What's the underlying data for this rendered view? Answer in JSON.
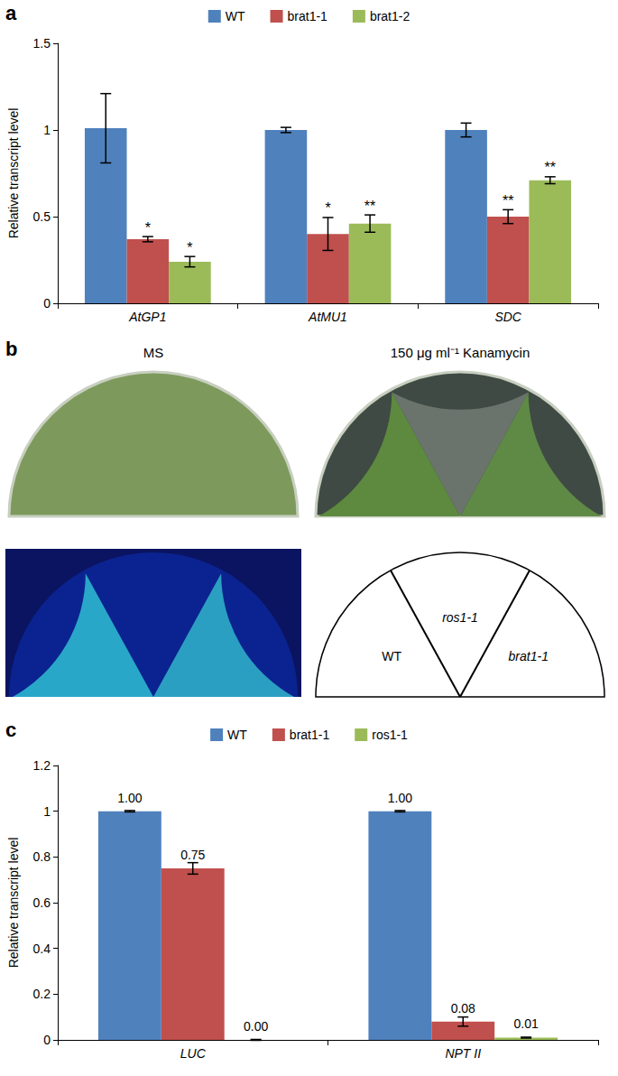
{
  "panel_labels": [
    "a",
    "b",
    "c"
  ],
  "chart_data": [
    {
      "type": "bar",
      "categories": [
        "AtGP1",
        "AtMU1",
        "SDC"
      ],
      "y_label": "Relative transcript level",
      "ylim": [
        0,
        1.5
      ],
      "yticks": [
        0,
        0.5,
        1,
        1.5
      ],
      "grid": false,
      "legend": "top",
      "series": [
        {
          "name": "WT",
          "color": "#4f81bd",
          "values": [
            1.01,
            1.0,
            1.0
          ],
          "errors": [
            0.2,
            0.015,
            0.04
          ]
        },
        {
          "name": "brat1-1",
          "color": "#c0504d",
          "values": [
            0.37,
            0.4,
            0.5
          ],
          "errors": [
            0.015,
            0.095,
            0.04
          ],
          "annotations": [
            "*",
            "*",
            "**"
          ]
        },
        {
          "name": "brat1-2",
          "color": "#9bbb59",
          "values": [
            0.24,
            0.46,
            0.71
          ],
          "errors": [
            0.03,
            0.05,
            0.02
          ],
          "annotations": [
            "*",
            "**",
            "**"
          ]
        }
      ]
    },
    {
      "type": "bar",
      "categories": [
        "LUC",
        "NPT II"
      ],
      "y_label": "Relative transcript level",
      "ylim": [
        0,
        1.2
      ],
      "yticks": [
        0,
        0.2,
        0.4,
        0.6,
        0.8,
        1,
        1.2
      ],
      "grid": false,
      "legend": "top",
      "data_labels": true,
      "series": [
        {
          "name": "WT",
          "color": "#4f81bd",
          "values": [
            1.0,
            1.0
          ],
          "value_labels": [
            "1.00",
            "1.00"
          ],
          "errors": [
            0.003,
            0.003
          ]
        },
        {
          "name": "brat1-1",
          "color": "#c0504d",
          "values": [
            0.75,
            0.08
          ],
          "value_labels": [
            "0.75",
            "0.08"
          ],
          "errors": [
            0.025,
            0.02
          ]
        },
        {
          "name": "ros1-1",
          "color": "#9bbb59",
          "values": [
            0.0,
            0.01
          ],
          "value_labels": [
            "0.00",
            "0.01"
          ],
          "errors": [
            0.002,
            0.002
          ]
        }
      ]
    }
  ],
  "panel_b": {
    "titles": [
      "MS",
      "150 μg ml⁻¹ Kanamycin"
    ],
    "sectors": [
      "WT",
      "ros1-1",
      "brat1-1"
    ]
  }
}
